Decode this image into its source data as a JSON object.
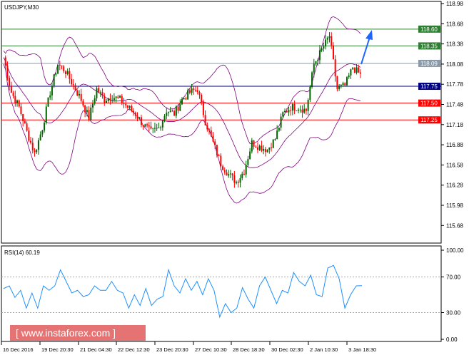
{
  "chart_data": [
    {
      "type": "candlestick",
      "title": "USDJPY,M30",
      "ylim": [
        115.5,
        119.0
      ],
      "y_ticks": [
        "118.98",
        "118.68",
        "118.38",
        "118.08",
        "117.78",
        "117.48",
        "117.18",
        "116.88",
        "116.58",
        "116.28",
        "115.98",
        "115.68"
      ],
      "x_ticks": [
        "16 Dec 2016",
        "19 Dec 20:30",
        "21 Dec 04:30",
        "22 Dec 12:30",
        "23 Dec 20:30",
        "27 Dec 10:30",
        "28 Dec 18:30",
        "30 Dec 02:30",
        "2 Jan 10:30",
        "3 Jan 18:30"
      ],
      "levels": [
        {
          "value": 118.6,
          "label": "118.60",
          "color": "#2e7d32"
        },
        {
          "value": 118.35,
          "label": "118.35",
          "color": "#2e7d32"
        },
        {
          "value": 118.09,
          "label": "118.09",
          "color": "#8a9aa8"
        },
        {
          "value": 117.75,
          "label": "117.75",
          "color": "#000080"
        },
        {
          "value": 117.5,
          "label": "117.50",
          "color": "#ff0000"
        },
        {
          "value": 117.25,
          "label": "117.25",
          "color": "#ff0000"
        }
      ],
      "closes": [
        118.18,
        117.66,
        117.44,
        117.07,
        116.75,
        117.13,
        117.66,
        118.08,
        117.97,
        117.76,
        117.55,
        117.28,
        117.71,
        117.55,
        117.6,
        117.55,
        117.44,
        117.34,
        117.18,
        117.07,
        117.13,
        117.39,
        117.34,
        117.55,
        117.66,
        117.71,
        117.23,
        116.91,
        116.6,
        116.44,
        116.33,
        116.49,
        116.91,
        116.85,
        116.81,
        116.97,
        117.34,
        117.44,
        117.44,
        117.39,
        118.08,
        118.29,
        118.5,
        117.71,
        117.76,
        118.03,
        117.92
      ],
      "indicator": "Bollinger Bands",
      "forecast_arrow": "up",
      "colors": {
        "bull": "#006400",
        "bear": "#ff0000",
        "bands": "#800080",
        "arrow": "#1e64ff"
      }
    },
    {
      "type": "line",
      "title": "RSI(14) 60.19",
      "ylim": [
        0,
        100
      ],
      "y_ticks": [
        "100.00",
        "70.00",
        "30.00",
        "0.00"
      ],
      "levels": [
        70,
        30
      ],
      "values": [
        57,
        60,
        47,
        55,
        35,
        52,
        35,
        60,
        55,
        60,
        78,
        65,
        52,
        55,
        48,
        50,
        60,
        55,
        55,
        65,
        55,
        52,
        35,
        50,
        38,
        57,
        38,
        45,
        48,
        78,
        60,
        52,
        68,
        55,
        65,
        50,
        68,
        55,
        25,
        40,
        30,
        35,
        58,
        45,
        35,
        60,
        70,
        55,
        40,
        55,
        52,
        75,
        65,
        60,
        72,
        50,
        48,
        80,
        83,
        68,
        35,
        50,
        60,
        60.19
      ],
      "color": "#1e90ff"
    }
  ],
  "watermark": "[ www.instaforex.com ]"
}
